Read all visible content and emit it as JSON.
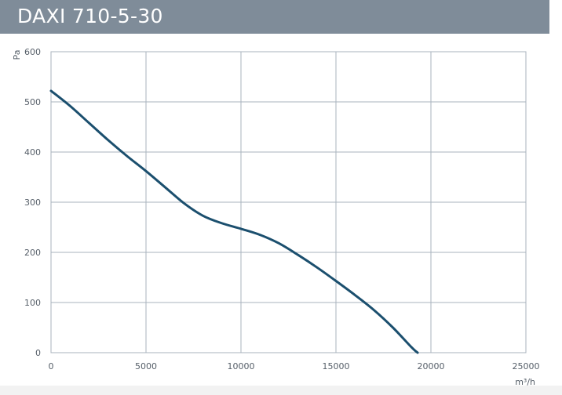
{
  "header": {
    "title": "DAXI 710-5-30"
  },
  "colors": {
    "title_bar": "#7f8c99",
    "grid": "#a9b3bd",
    "curve": "#1b4f6e",
    "tick_text": "#555e68"
  },
  "chart_data": {
    "type": "line",
    "title": "DAXI 710-5-30",
    "xlabel": "m³/h",
    "ylabel": "Pa",
    "xlim": [
      0,
      25000
    ],
    "ylim": [
      0,
      600
    ],
    "x_ticks": [
      "0",
      "5000",
      "10000",
      "15000",
      "20000",
      "25000"
    ],
    "y_ticks": [
      "0",
      "100",
      "200",
      "300",
      "400",
      "500",
      "600"
    ],
    "grid": true,
    "series": [
      {
        "x": [
          0,
          1000,
          2000,
          3000,
          4000,
          5000,
          6000,
          7000,
          8000,
          9000,
          10000,
          11000,
          12000,
          13000,
          14000,
          15000,
          16000,
          17000,
          18000,
          19000,
          19300
        ],
        "y": [
          522,
          492,
          458,
          424,
          392,
          362,
          330,
          298,
          273,
          258,
          247,
          235,
          218,
          195,
          170,
          143,
          115,
          85,
          50,
          10,
          0
        ]
      }
    ]
  }
}
